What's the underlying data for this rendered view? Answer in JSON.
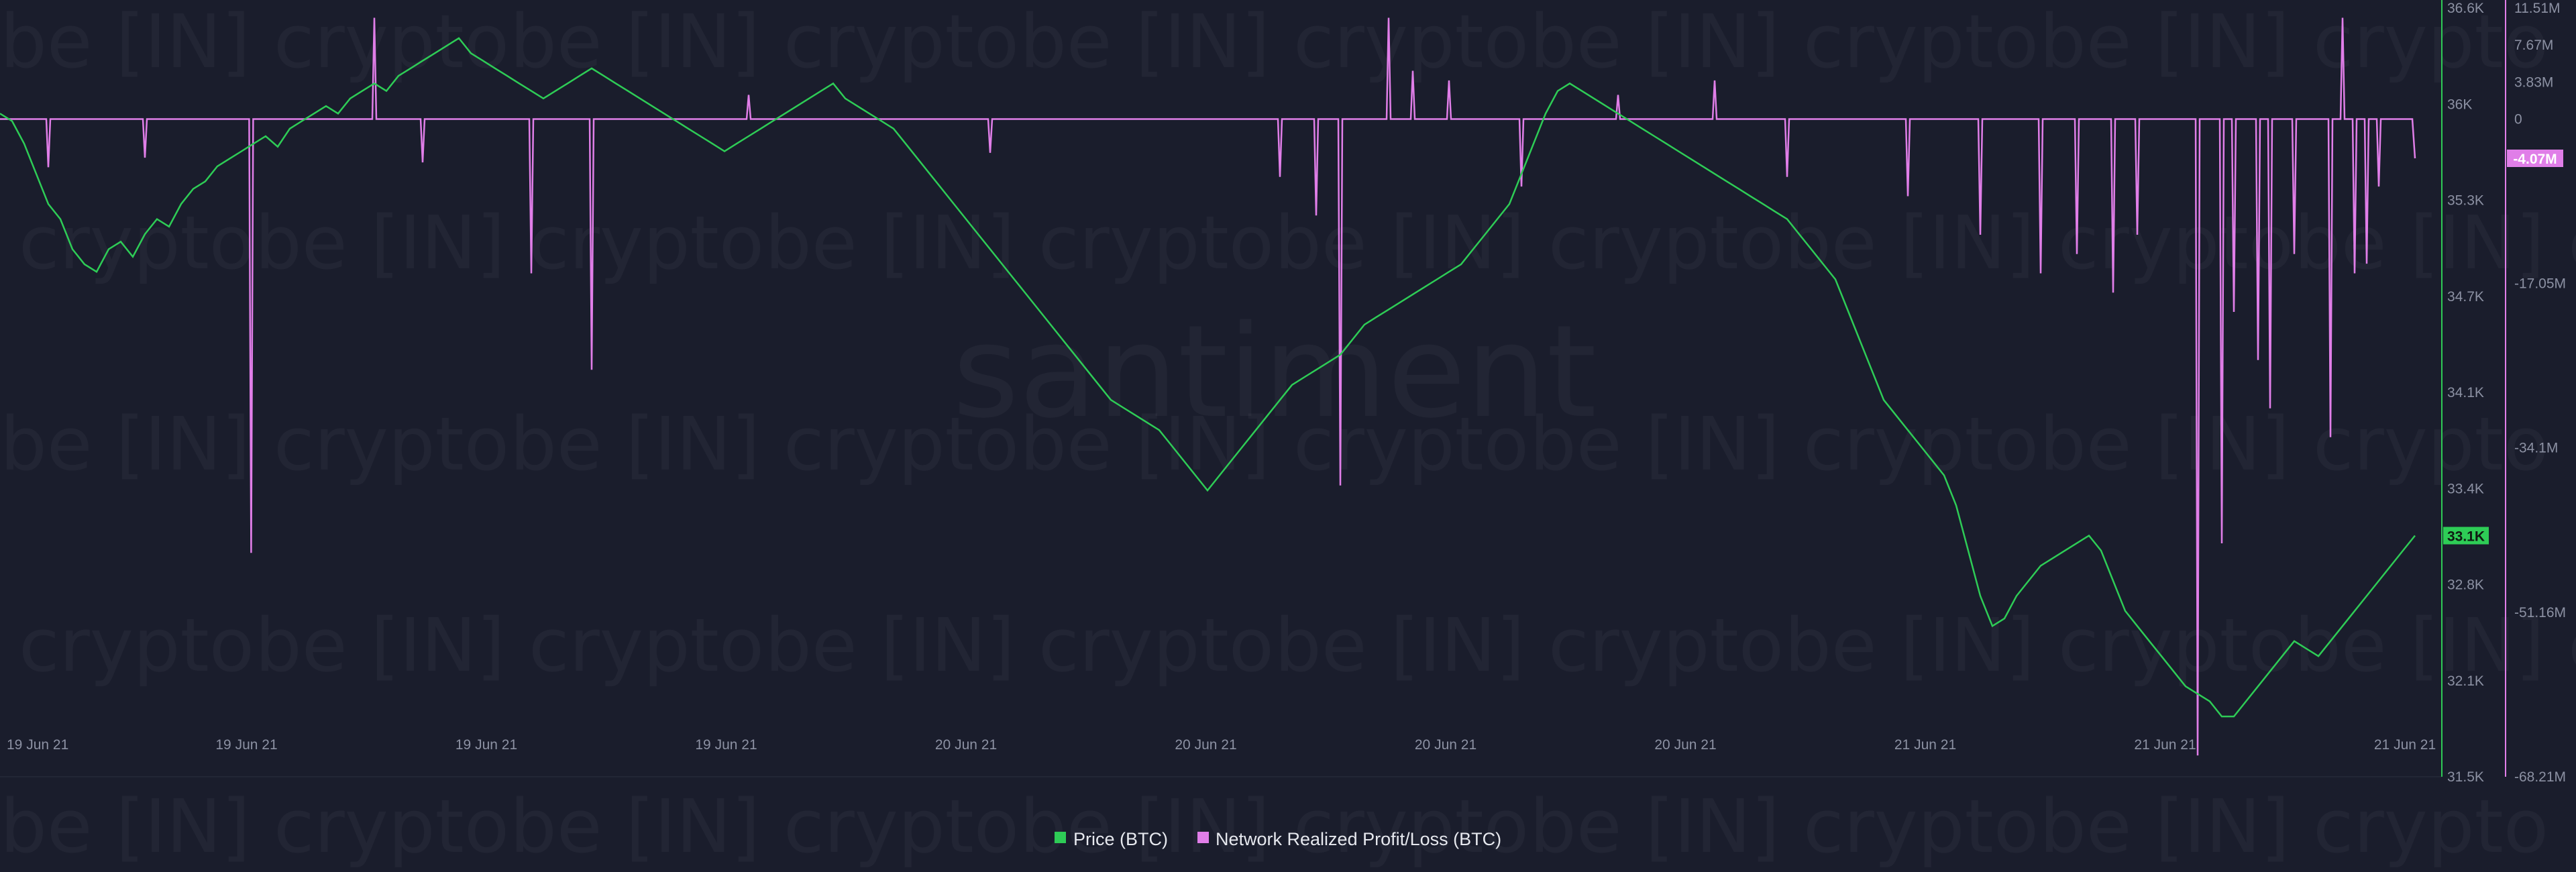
{
  "chart_data": {
    "type": "line",
    "x_labels": [
      "19 Jun 21",
      "19 Jun 21",
      "19 Jun 21",
      "19 Jun 21",
      "20 Jun 21",
      "20 Jun 21",
      "20 Jun 21",
      "20 Jun 21",
      "21 Jun 21",
      "21 Jun 21",
      "21 Jun 21"
    ],
    "price_axis": {
      "ticks": [
        "36.6K",
        "36K",
        "35.3K",
        "34.7K",
        "34.1K",
        "33.4K",
        "32.8K",
        "32.1K",
        "31.5K"
      ],
      "range": [
        31500,
        36600
      ],
      "color": "#2ecc56"
    },
    "pnl_axis": {
      "ticks": [
        "11.51M",
        "7.67M",
        "3.83M",
        "0",
        "-17.05M",
        "-34.1M",
        "-51.16M",
        "-68.21M"
      ],
      "range": [
        -68210000,
        11510000
      ],
      "color": "#e07ee8"
    },
    "series": [
      {
        "name": "Price (BTC)",
        "color": "#2ecc56",
        "last_badge": "33.1K",
        "values": [
          35900,
          35850,
          35700,
          35500,
          35300,
          35200,
          35000,
          34900,
          34850,
          35000,
          35050,
          34950,
          35100,
          35200,
          35150,
          35300,
          35400,
          35450,
          35550,
          35600,
          35650,
          35700,
          35750,
          35680,
          35800,
          35850,
          35900,
          35950,
          35900,
          36000,
          36050,
          36100,
          36050,
          36150,
          36200,
          36250,
          36300,
          36350,
          36400,
          36300,
          36250,
          36200,
          36150,
          36100,
          36050,
          36000,
          36050,
          36100,
          36150,
          36200,
          36150,
          36100,
          36050,
          36000,
          35950,
          35900,
          35850,
          35800,
          35750,
          35700,
          35650,
          35700,
          35750,
          35800,
          35850,
          35900,
          35950,
          36000,
          36050,
          36100,
          36000,
          35950,
          35900,
          35850,
          35800,
          35700,
          35600,
          35500,
          35400,
          35300,
          35200,
          35100,
          35000,
          34900,
          34800,
          34700,
          34600,
          34500,
          34400,
          34300,
          34200,
          34100,
          34000,
          33950,
          33900,
          33850,
          33800,
          33700,
          33600,
          33500,
          33400,
          33500,
          33600,
          33700,
          33800,
          33900,
          34000,
          34100,
          34150,
          34200,
          34250,
          34300,
          34400,
          34500,
          34550,
          34600,
          34650,
          34700,
          34750,
          34800,
          34850,
          34900,
          35000,
          35100,
          35200,
          35300,
          35500,
          35700,
          35900,
          36050,
          36100,
          36050,
          36000,
          35950,
          35900,
          35850,
          35800,
          35750,
          35700,
          35650,
          35600,
          35550,
          35500,
          35450,
          35400,
          35350,
          35300,
          35250,
          35200,
          35100,
          35000,
          34900,
          34800,
          34600,
          34400,
          34200,
          34000,
          33900,
          33800,
          33700,
          33600,
          33500,
          33300,
          33000,
          32700,
          32500,
          32550,
          32700,
          32800,
          32900,
          32950,
          33000,
          33050,
          33100,
          33000,
          32800,
          32600,
          32500,
          32400,
          32300,
          32200,
          32100,
          32050,
          32000,
          31900,
          31900,
          32000,
          32100,
          32200,
          32300,
          32400,
          32350,
          32300,
          32400,
          32500,
          32600,
          32700,
          32800,
          32900,
          33000,
          33100
        ]
      },
      {
        "name": "Network Realized Profit/Loss (BTC)",
        "color": "#e07ee8",
        "last_badge": "-4.07M",
        "spikes": [
          {
            "t": 0.02,
            "v": -5000000
          },
          {
            "t": 0.06,
            "v": -4000000
          },
          {
            "t": 0.104,
            "v": -45000000
          },
          {
            "t": 0.155,
            "v": 10500000
          },
          {
            "t": 0.175,
            "v": -4500000
          },
          {
            "t": 0.22,
            "v": -16000000
          },
          {
            "t": 0.245,
            "v": -26000000
          },
          {
            "t": 0.31,
            "v": 2500000
          },
          {
            "t": 0.41,
            "v": -3500000
          },
          {
            "t": 0.53,
            "v": -6000000
          },
          {
            "t": 0.545,
            "v": -10000000
          },
          {
            "t": 0.555,
            "v": -38000000
          },
          {
            "t": 0.575,
            "v": 10500000
          },
          {
            "t": 0.585,
            "v": 5000000
          },
          {
            "t": 0.6,
            "v": 4000000
          },
          {
            "t": 0.63,
            "v": -7000000
          },
          {
            "t": 0.67,
            "v": 2500000
          },
          {
            "t": 0.71,
            "v": 4000000
          },
          {
            "t": 0.74,
            "v": -6000000
          },
          {
            "t": 0.79,
            "v": -8000000
          },
          {
            "t": 0.82,
            "v": -12000000
          },
          {
            "t": 0.845,
            "v": -16000000
          },
          {
            "t": 0.86,
            "v": -14000000
          },
          {
            "t": 0.875,
            "v": -18000000
          },
          {
            "t": 0.885,
            "v": -12000000
          },
          {
            "t": 0.91,
            "v": -66000000
          },
          {
            "t": 0.92,
            "v": -44000000
          },
          {
            "t": 0.925,
            "v": -20000000
          },
          {
            "t": 0.935,
            "v": -25000000
          },
          {
            "t": 0.94,
            "v": -30000000
          },
          {
            "t": 0.95,
            "v": -14000000
          },
          {
            "t": 0.965,
            "v": -33000000
          },
          {
            "t": 0.975,
            "v": -16000000
          },
          {
            "t": 0.98,
            "v": -15000000
          },
          {
            "t": 0.97,
            "v": 10500000
          },
          {
            "t": 0.985,
            "v": -7000000
          }
        ]
      }
    ],
    "legend_position": "bottom-center",
    "grid": false
  }
}
